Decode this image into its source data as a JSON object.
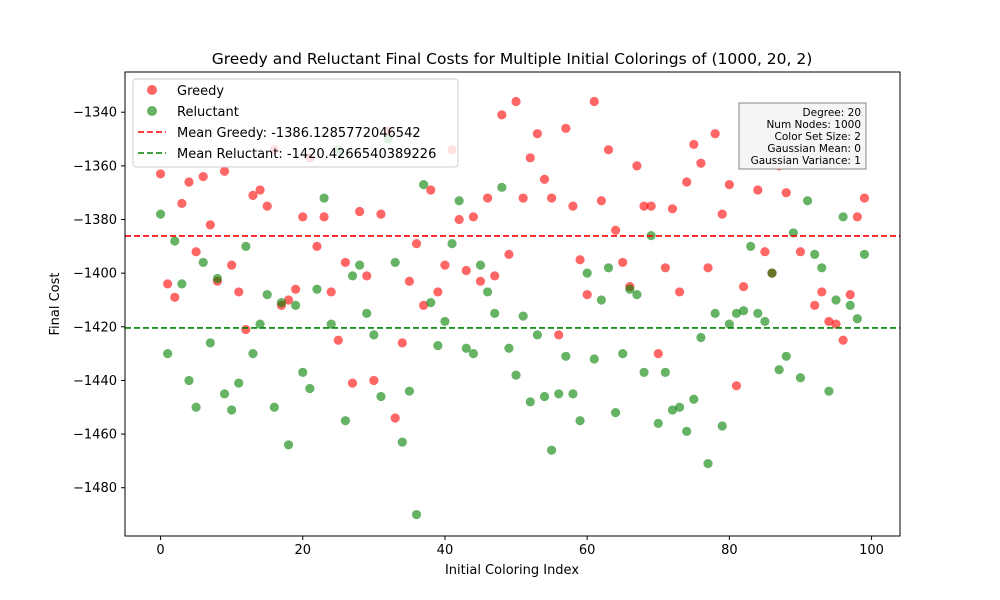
{
  "chart_data": {
    "type": "scatter",
    "title": "Greedy and Reluctant Final Costs for Multiple Initial Colorings of (1000, 20, 2)",
    "xlabel": "Initial Coloring Index",
    "ylabel": "Final Cost",
    "xlim": [
      -5,
      104
    ],
    "ylim": [
      -1498,
      -1325
    ],
    "xticks": [
      0,
      20,
      40,
      60,
      80,
      100
    ],
    "yticks": [
      -1480,
      -1460,
      -1440,
      -1420,
      -1400,
      -1380,
      -1360,
      -1340
    ],
    "xtick_labels": [
      "0",
      "20",
      "40",
      "60",
      "80",
      "100"
    ],
    "ytick_labels": [
      "−1480",
      "−1460",
      "−1440",
      "−1420",
      "−1400",
      "−1380",
      "−1360",
      "−1340"
    ],
    "grid": false,
    "legend_position": "top-left",
    "series": [
      {
        "name": "Greedy",
        "color": "#ff0000",
        "x": [
          0,
          1,
          2,
          3,
          4,
          5,
          6,
          7,
          8,
          9,
          10,
          11,
          12,
          13,
          14,
          15,
          16,
          17,
          18,
          19,
          20,
          21,
          22,
          23,
          24,
          25,
          26,
          27,
          28,
          29,
          30,
          31,
          32,
          33,
          34,
          35,
          36,
          37,
          38,
          39,
          40,
          41,
          42,
          43,
          44,
          45,
          46,
          47,
          48,
          49,
          50,
          51,
          52,
          53,
          54,
          55,
          56,
          57,
          58,
          59,
          60,
          61,
          62,
          63,
          64,
          65,
          66,
          67,
          68,
          69,
          70,
          71,
          72,
          73,
          74,
          75,
          76,
          77,
          78,
          79,
          80,
          81,
          82,
          83,
          84,
          85,
          86,
          87,
          88,
          89,
          90,
          91,
          92,
          93,
          94,
          95,
          96,
          97,
          98,
          99
        ],
        "y": [
          -1363,
          -1404,
          -1409,
          -1374,
          -1366,
          -1392,
          -1364,
          -1382,
          -1403,
          -1362,
          -1397,
          -1407,
          -1421,
          -1371,
          -1369,
          -1375,
          -1354,
          -1412,
          -1410,
          -1406,
          -1379,
          -1357,
          -1390,
          -1379,
          -1407,
          -1425,
          -1396,
          -1441,
          -1377,
          -1401,
          -1440,
          -1378,
          -1347,
          -1454,
          -1426,
          -1403,
          -1389,
          -1412,
          -1369,
          -1407,
          -1397,
          -1354,
          -1380,
          -1399,
          -1379,
          -1403,
          -1372,
          -1401,
          -1341,
          -1393,
          -1336,
          -1372,
          -1357,
          -1348,
          -1365,
          -1372,
          -1423,
          -1346,
          -1375,
          -1395,
          -1408,
          -1336,
          -1373,
          -1354,
          -1384,
          -1396,
          -1405,
          -1360,
          -1375,
          -1375,
          -1430,
          -1398,
          -1376,
          -1407,
          -1366,
          -1352,
          -1359,
          -1398,
          -1348,
          -1378,
          -1367,
          -1442,
          -1405,
          -1356,
          -1369,
          -1392,
          -1400,
          -1360,
          -1370,
          -1351,
          -1392,
          -1353,
          -1412,
          -1407,
          -1418,
          -1419,
          -1425,
          -1408,
          -1379,
          -1372
        ]
      },
      {
        "name": "Reluctant",
        "color": "#008000",
        "x": [
          0,
          1,
          2,
          3,
          4,
          5,
          6,
          7,
          8,
          9,
          10,
          11,
          12,
          13,
          14,
          15,
          16,
          17,
          18,
          19,
          20,
          21,
          22,
          23,
          24,
          25,
          26,
          27,
          28,
          29,
          30,
          31,
          32,
          33,
          34,
          35,
          36,
          37,
          38,
          39,
          40,
          41,
          42,
          43,
          44,
          45,
          46,
          47,
          48,
          49,
          50,
          51,
          52,
          53,
          54,
          55,
          56,
          57,
          58,
          59,
          60,
          61,
          62,
          63,
          64,
          65,
          66,
          67,
          68,
          69,
          70,
          71,
          72,
          73,
          74,
          75,
          76,
          77,
          78,
          79,
          80,
          81,
          82,
          83,
          84,
          85,
          86,
          87,
          88,
          89,
          90,
          91,
          92,
          93,
          94,
          95,
          96,
          97,
          98,
          99
        ],
        "y": [
          -1378,
          -1430,
          -1388,
          -1404,
          -1440,
          -1450,
          -1396,
          -1426,
          -1402,
          -1445,
          -1451,
          -1441,
          -1390,
          -1430,
          -1419,
          -1408,
          -1450,
          -1411,
          -1464,
          -1412,
          -1437,
          -1443,
          -1406,
          -1372,
          -1419,
          -1354,
          -1455,
          -1401,
          -1397,
          -1415,
          -1423,
          -1446,
          -1350,
          -1396,
          -1463,
          -1444,
          -1490,
          -1367,
          -1411,
          -1427,
          -1418,
          -1389,
          -1373,
          -1428,
          -1430,
          -1397,
          -1407,
          -1415,
          -1368,
          -1428,
          -1438,
          -1416,
          -1448,
          -1423,
          -1446,
          -1466,
          -1445,
          -1431,
          -1445,
          -1455,
          -1400,
          -1432,
          -1410,
          -1398,
          -1452,
          -1430,
          -1406,
          -1408,
          -1437,
          -1386,
          -1456,
          -1437,
          -1451,
          -1450,
          -1459,
          -1447,
          -1424,
          -1471,
          -1415,
          -1457,
          -1419,
          -1415,
          -1414,
          -1390,
          -1415,
          -1418,
          -1400,
          -1436,
          -1431,
          -1385,
          -1439,
          -1373,
          -1393,
          -1398,
          -1444,
          -1410,
          -1379,
          -1412,
          -1417,
          -1393
        ]
      }
    ],
    "mean_lines": [
      {
        "label": "Mean Greedy: -1386.1285772046542",
        "value": -1386.1285772046542,
        "color": "#ff0000"
      },
      {
        "label": "Mean Reluctant: -1420.4266540389226",
        "value": -1420.4266540389226,
        "color": "#008000"
      }
    ],
    "info_box": [
      "Degree: 20",
      "Num Nodes: 1000",
      "Color Set Size: 2",
      "Gaussian Mean: 0",
      "Gaussian Variance: 1"
    ]
  }
}
